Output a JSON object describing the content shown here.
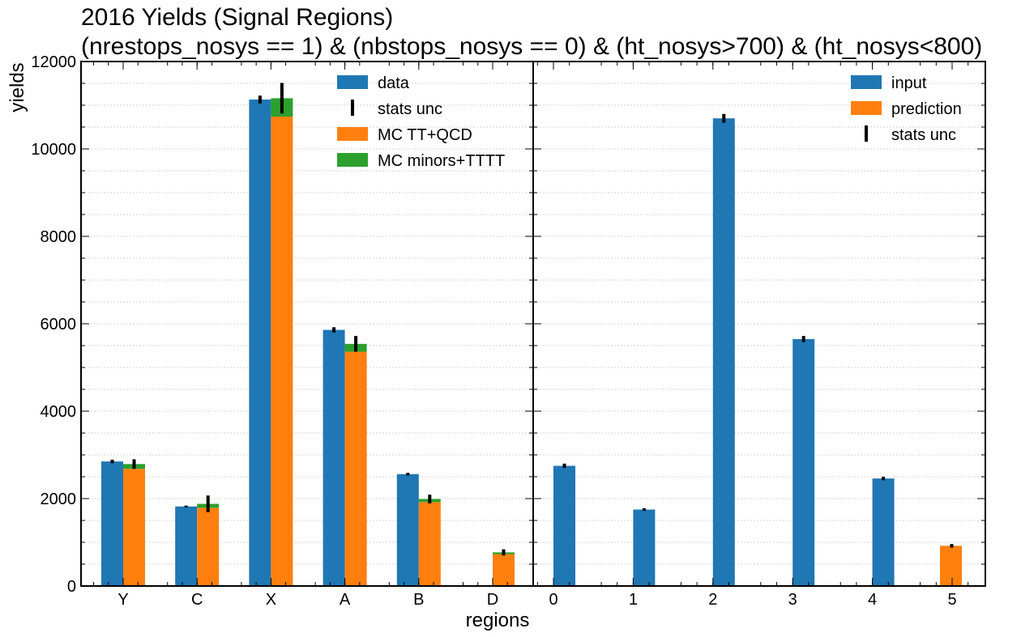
{
  "chart_data": {
    "type": "bar",
    "title": "2016 Yields (Signal Regions)",
    "subtitle": "(nrestops_nosys == 1) & (nbstops_nosys == 0) & (ht_nosys>700) & (ht_nosys<800)",
    "xlabel": "regions",
    "ylabel": "yields",
    "ylim": [
      0,
      12000
    ],
    "y_ticks": [
      0,
      2000,
      4000,
      6000,
      8000,
      10000,
      12000
    ],
    "grid": true,
    "colors": {
      "data": "#1f77b4",
      "mc_main": "#ff7f0e",
      "mc_minor": "#2ca02c",
      "unc": "#000000"
    },
    "panels": [
      {
        "categories": [
          "Y",
          "C",
          "X",
          "A",
          "B",
          "D"
        ],
        "legend_position": "top-right",
        "legend": [
          "data",
          "stats unc",
          "MC TT+QCD",
          "MC minors+TTTT"
        ],
        "data": {
          "values": [
            2850,
            1820,
            11130,
            5860,
            2560,
            null
          ],
          "unc": [
            40,
            20,
            90,
            60,
            30,
            null
          ]
        },
        "mc_ttqcd": [
          2680,
          1790,
          10740,
          5360,
          1920,
          730
        ],
        "mc_minors_tttt": [
          110,
          90,
          420,
          180,
          70,
          40
        ],
        "mc_unc": [
          110,
          190,
          350,
          180,
          100,
          70
        ]
      },
      {
        "categories": [
          "0",
          "1",
          "2",
          "3",
          "4",
          "5"
        ],
        "legend_position": "top-right",
        "legend": [
          "input",
          "prediction",
          "stats unc"
        ],
        "input": {
          "values": [
            2750,
            1750,
            10700,
            5650,
            2460,
            null
          ],
          "unc": [
            50,
            30,
            100,
            70,
            40,
            null
          ]
        },
        "prediction": {
          "values": [
            null,
            null,
            null,
            null,
            null,
            920
          ],
          "unc": [
            null,
            null,
            null,
            null,
            null,
            40
          ]
        }
      }
    ]
  }
}
